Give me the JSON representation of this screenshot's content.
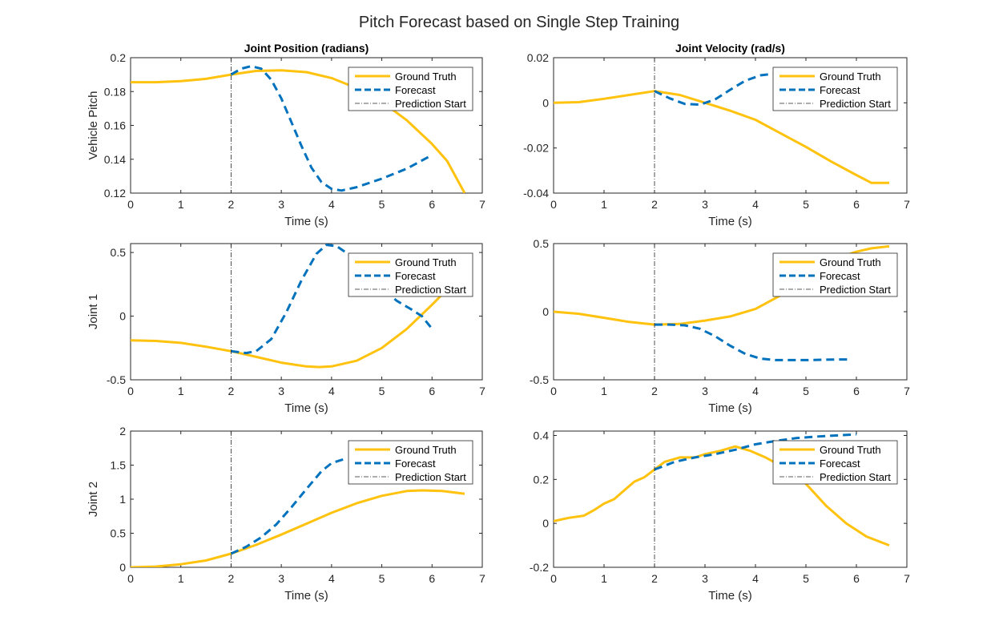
{
  "figure": {
    "title": "Pitch Forecast based on Single Step Training"
  },
  "colors": {
    "ground_truth": "#FFC20E",
    "forecast": "#0072BD",
    "prediction_start": "#262626",
    "axes": "#262626"
  },
  "chart_data": [
    {
      "id": "pos-pitch",
      "type": "line",
      "title": "Joint Position (radians)",
      "xlabel": "Time (s)",
      "ylabel": "Vehicle Pitch",
      "xlim": [
        0,
        7
      ],
      "ylim": [
        0.12,
        0.2
      ],
      "xticks": [
        "0",
        "1",
        "2",
        "3",
        "4",
        "5",
        "6",
        "7"
      ],
      "yticks": [
        0.12,
        0.14,
        0.16,
        0.18,
        0.2
      ],
      "ytick_labels": [
        "0.12",
        "0.14",
        "0.16",
        "0.18",
        "0.2"
      ],
      "legend": {
        "position": "top-right",
        "entries": [
          "Ground Truth",
          "Forecast",
          "Prediction Start"
        ]
      },
      "prediction_start": 2,
      "series": [
        {
          "name": "Ground Truth",
          "style": "solid",
          "x": [
            0,
            0.5,
            1,
            1.5,
            2,
            2.5,
            3,
            3.5,
            4,
            4.5,
            5,
            5.5,
            6,
            6.3,
            6.65
          ],
          "y": [
            0.1855,
            0.1855,
            0.1862,
            0.1875,
            0.19,
            0.1922,
            0.1925,
            0.1915,
            0.188,
            0.182,
            0.174,
            0.163,
            0.149,
            0.139,
            0.12
          ]
        },
        {
          "name": "Forecast",
          "style": "dashed",
          "x": [
            2,
            2.2,
            2.4,
            2.6,
            2.8,
            3.0,
            3.2,
            3.4,
            3.6,
            3.8,
            4.0,
            4.2,
            4.5,
            5.0,
            5.5,
            6.0
          ],
          "y": [
            0.19,
            0.1935,
            0.195,
            0.1935,
            0.187,
            0.176,
            0.162,
            0.148,
            0.135,
            0.1265,
            0.1225,
            0.1215,
            0.1235,
            0.1285,
            0.1345,
            0.1425
          ]
        }
      ]
    },
    {
      "id": "vel-pitch",
      "type": "line",
      "title": "Joint Velocity (rad/s)",
      "xlabel": "Time (s)",
      "ylabel": "",
      "xlim": [
        0,
        7
      ],
      "ylim": [
        -0.04,
        0.02
      ],
      "xticks": [
        "0",
        "1",
        "2",
        "3",
        "4",
        "5",
        "6",
        "7"
      ],
      "yticks": [
        -0.04,
        -0.02,
        0,
        0.02
      ],
      "ytick_labels": [
        "-0.04",
        "-0.02",
        "0",
        "0.02"
      ],
      "legend": {
        "position": "top-right",
        "entries": [
          "Ground Truth",
          "Forecast",
          "Prediction Start"
        ]
      },
      "prediction_start": 2,
      "series": [
        {
          "name": "Ground Truth",
          "style": "solid",
          "x": [
            0,
            0.5,
            1,
            1.5,
            2,
            2.5,
            3,
            3.5,
            4,
            4.5,
            5,
            5.5,
            6,
            6.3,
            6.65
          ],
          "y": [
            0,
            0.0003,
            0.0018,
            0.0035,
            0.0052,
            0.0035,
            0,
            -0.0035,
            -0.0075,
            -0.0135,
            -0.0195,
            -0.026,
            -0.032,
            -0.0355,
            -0.0355
          ]
        },
        {
          "name": "Forecast",
          "style": "dashed",
          "x": [
            2,
            2.3,
            2.6,
            2.9,
            3.2,
            3.5,
            3.8,
            4.1,
            4.4,
            4.7
          ],
          "y": [
            0.0052,
            0.002,
            -0.0005,
            -0.0008,
            0.0015,
            0.0058,
            0.0098,
            0.0122,
            0.013,
            0.0132
          ]
        }
      ]
    },
    {
      "id": "pos-joint1",
      "type": "line",
      "title": "",
      "xlabel": "Time (s)",
      "ylabel": "Joint 1",
      "xlim": [
        0,
        7
      ],
      "ylim": [
        -0.5,
        0.57
      ],
      "xticks": [
        "0",
        "1",
        "2",
        "3",
        "4",
        "5",
        "6",
        "7"
      ],
      "yticks": [
        -0.5,
        0,
        0.5
      ],
      "ytick_labels": [
        "-0.5",
        "0",
        "0.5"
      ],
      "legend": {
        "position": "top-right",
        "entries": [
          "Ground Truth",
          "Forecast",
          "Prediction Start"
        ]
      },
      "prediction_start": 2,
      "series": [
        {
          "name": "Ground Truth",
          "style": "solid",
          "x": [
            0,
            0.5,
            1,
            1.5,
            2,
            2.5,
            3,
            3.5,
            3.75,
            4,
            4.5,
            5,
            5.5,
            6,
            6.3
          ],
          "y": [
            -0.19,
            -0.195,
            -0.21,
            -0.24,
            -0.275,
            -0.32,
            -0.365,
            -0.395,
            -0.4,
            -0.395,
            -0.35,
            -0.25,
            -0.1,
            0.09,
            0.21
          ]
        },
        {
          "name": "Forecast",
          "style": "dashed",
          "x": [
            2,
            2.3,
            2.5,
            2.8,
            3.1,
            3.4,
            3.7,
            3.9,
            4.1,
            4.4,
            4.7,
            5.0,
            5.3,
            5.6,
            5.8,
            6.0
          ],
          "y": [
            -0.275,
            -0.29,
            -0.275,
            -0.18,
            0.03,
            0.28,
            0.49,
            0.56,
            0.55,
            0.47,
            0.35,
            0.22,
            0.12,
            0.05,
            0.0,
            -0.1
          ]
        }
      ]
    },
    {
      "id": "vel-joint1",
      "type": "line",
      "title": "",
      "xlabel": "Time (s)",
      "ylabel": "",
      "xlim": [
        0,
        7
      ],
      "ylim": [
        -0.5,
        0.5
      ],
      "xticks": [
        "0",
        "1",
        "2",
        "3",
        "4",
        "5",
        "6",
        "7"
      ],
      "yticks": [
        -0.5,
        0,
        0.5
      ],
      "ytick_labels": [
        "-0.5",
        "0",
        "0.5"
      ],
      "legend": {
        "position": "top-right",
        "entries": [
          "Ground Truth",
          "Forecast",
          "Prediction Start"
        ]
      },
      "prediction_start": 2,
      "series": [
        {
          "name": "Ground Truth",
          "style": "solid",
          "x": [
            0,
            0.5,
            1,
            1.5,
            2,
            2.5,
            3,
            3.5,
            4,
            4.5,
            5,
            5.5,
            6,
            6.3,
            6.65
          ],
          "y": [
            0,
            -0.015,
            -0.045,
            -0.075,
            -0.095,
            -0.09,
            -0.065,
            -0.035,
            0.02,
            0.12,
            0.26,
            0.38,
            0.44,
            0.465,
            0.48
          ]
        },
        {
          "name": "Forecast",
          "style": "dashed",
          "x": [
            2,
            2.3,
            2.6,
            2.9,
            3.2,
            3.5,
            3.8,
            4.1,
            4.4,
            4.7,
            5.0,
            5.5,
            5.9
          ],
          "y": [
            -0.095,
            -0.095,
            -0.1,
            -0.125,
            -0.18,
            -0.25,
            -0.31,
            -0.345,
            -0.355,
            -0.355,
            -0.355,
            -0.352,
            -0.35
          ]
        }
      ]
    },
    {
      "id": "pos-joint2",
      "type": "line",
      "title": "",
      "xlabel": "Time (s)",
      "ylabel": "Joint 2",
      "xlim": [
        0,
        7
      ],
      "ylim": [
        0,
        2
      ],
      "xticks": [
        "0",
        "1",
        "2",
        "3",
        "4",
        "5",
        "6",
        "7"
      ],
      "yticks": [
        0,
        0.5,
        1,
        1.5,
        2
      ],
      "ytick_labels": [
        "0",
        "0.5",
        "1",
        "1.5",
        "2"
      ],
      "legend": {
        "position": "top-right",
        "entries": [
          "Ground Truth",
          "Forecast",
          "Prediction Start"
        ]
      },
      "prediction_start": 2,
      "series": [
        {
          "name": "Ground Truth",
          "style": "solid",
          "x": [
            0,
            0.5,
            1,
            1.5,
            2,
            2.5,
            3,
            3.5,
            4,
            4.5,
            5,
            5.5,
            5.8,
            6.2,
            6.65
          ],
          "y": [
            0,
            0.01,
            0.045,
            0.1,
            0.2,
            0.33,
            0.48,
            0.64,
            0.8,
            0.94,
            1.05,
            1.12,
            1.13,
            1.12,
            1.08
          ]
        },
        {
          "name": "Forecast",
          "style": "dashed",
          "x": [
            2,
            2.3,
            2.6,
            2.9,
            3.2,
            3.5,
            3.8,
            4.0,
            4.3
          ],
          "y": [
            0.2,
            0.3,
            0.44,
            0.63,
            0.88,
            1.15,
            1.41,
            1.53,
            1.6
          ]
        }
      ]
    },
    {
      "id": "vel-joint2",
      "type": "line",
      "title": "",
      "xlabel": "Time (s)",
      "ylabel": "",
      "xlim": [
        0,
        7
      ],
      "ylim": [
        -0.2,
        0.42
      ],
      "xticks": [
        "0",
        "1",
        "2",
        "3",
        "4",
        "5",
        "6",
        "7"
      ],
      "yticks": [
        -0.2,
        0,
        0.2,
        0.4
      ],
      "ytick_labels": [
        "-0.2",
        "0",
        "0.2",
        "0.4"
      ],
      "legend": {
        "position": "top-right",
        "entries": [
          "Ground Truth",
          "Forecast",
          "Prediction Start"
        ]
      },
      "prediction_start": 2,
      "series": [
        {
          "name": "Ground Truth",
          "style": "solid",
          "x": [
            0,
            0.3,
            0.6,
            0.8,
            1.0,
            1.2,
            1.4,
            1.6,
            1.8,
            2.0,
            2.2,
            2.5,
            2.8,
            3.0,
            3.3,
            3.6,
            3.9,
            4.2,
            4.6,
            5.0,
            5.4,
            5.8,
            6.2,
            6.65
          ],
          "y": [
            0.01,
            0.025,
            0.035,
            0.06,
            0.09,
            0.11,
            0.15,
            0.19,
            0.21,
            0.245,
            0.28,
            0.3,
            0.3,
            0.315,
            0.33,
            0.35,
            0.33,
            0.3,
            0.25,
            0.18,
            0.08,
            0.0,
            -0.06,
            -0.1
          ]
        },
        {
          "name": "Forecast",
          "style": "dashed",
          "x": [
            2,
            2.4,
            2.8,
            3.2,
            3.6,
            4.0,
            4.4,
            4.8,
            5.2,
            5.6,
            6.0
          ],
          "y": [
            0.245,
            0.28,
            0.3,
            0.315,
            0.335,
            0.36,
            0.375,
            0.388,
            0.395,
            0.4,
            0.405
          ]
        }
      ]
    }
  ]
}
